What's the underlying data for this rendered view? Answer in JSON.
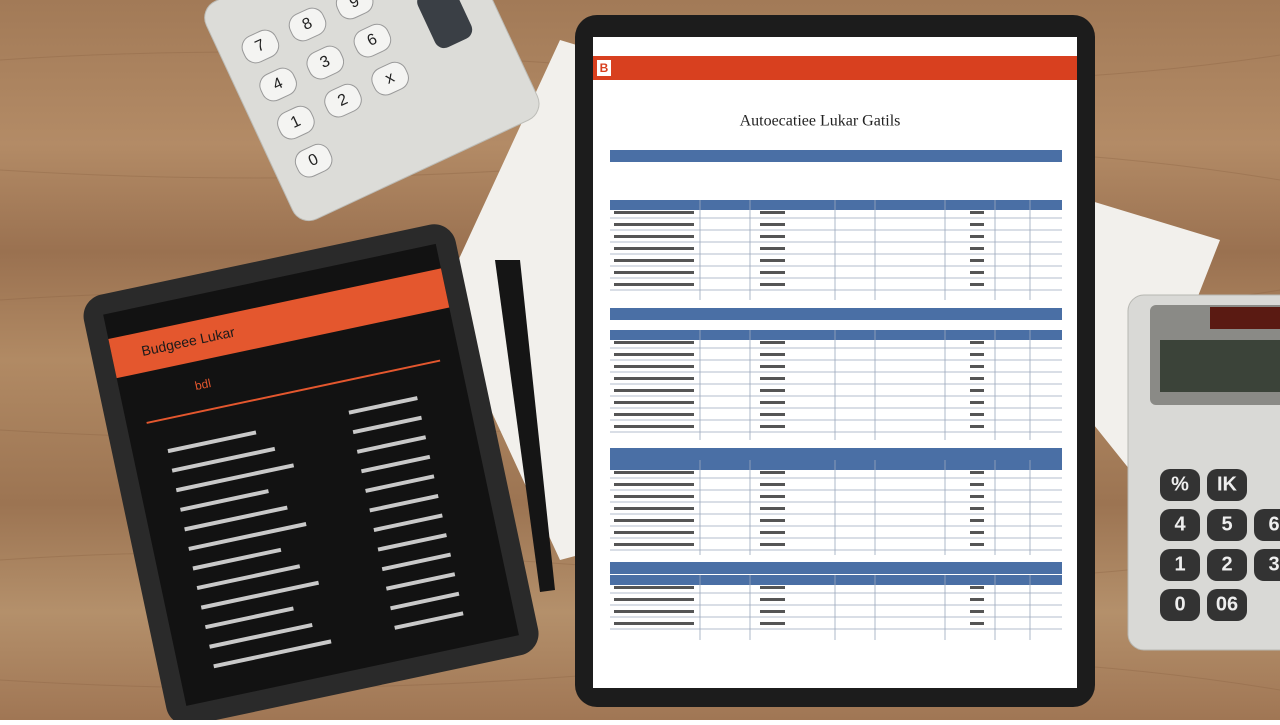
{
  "document": {
    "header_badge": "B",
    "title": "Autoecatiee Lukar Gatils",
    "left_tablet": {
      "header": "Budgeee Lukar",
      "tab": "bdl"
    },
    "top_calculator": {
      "keys": [
        [
          "7",
          "8",
          "9"
        ],
        [
          "4",
          "3",
          "6"
        ],
        [
          "1",
          "2",
          "x"
        ],
        [
          "0"
        ]
      ]
    },
    "right_calculator": {
      "keys": [
        [
          "%",
          "IK"
        ],
        [
          "4",
          "5",
          "6"
        ],
        [
          "1",
          "2",
          "3"
        ],
        [
          "0",
          "06"
        ]
      ]
    }
  }
}
